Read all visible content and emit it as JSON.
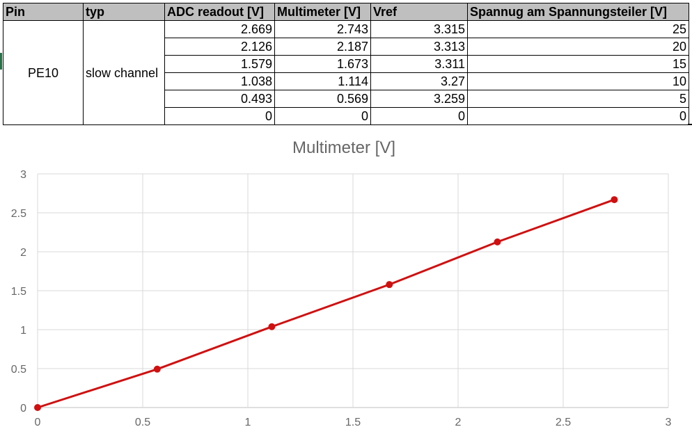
{
  "table": {
    "headers": [
      "Pin",
      "typ",
      "ADC readout [V]",
      "Multimeter [V]",
      "Vref",
      "Spannug am Spannungsteiler [V]"
    ],
    "pin": "PE10",
    "typ": "slow channel",
    "rows": [
      {
        "adc": "2.669",
        "multimeter": "2.743",
        "vref": "3.315",
        "spannung": "25"
      },
      {
        "adc": "2.126",
        "multimeter": "2.187",
        "vref": "3.313",
        "spannung": "20"
      },
      {
        "adc": "1.579",
        "multimeter": "1.673",
        "vref": "3.311",
        "spannung": "15"
      },
      {
        "adc": "1.038",
        "multimeter": "1.114",
        "vref": "3.27",
        "spannung": "10"
      },
      {
        "adc": "0.493",
        "multimeter": "0.569",
        "vref": "3.259",
        "spannung": "5"
      },
      {
        "adc": "0",
        "multimeter": "0",
        "vref": "0",
        "spannung": "0"
      }
    ]
  },
  "colors": {
    "series": "#d01010",
    "header_bg": "#bfbfbf",
    "text_muted": "#666666"
  },
  "chart_data": {
    "type": "scatter",
    "title": "Multimeter [V]",
    "xlabel": "",
    "ylabel": "",
    "xlim": [
      0,
      3
    ],
    "ylim": [
      0,
      3
    ],
    "xticks": [
      "0",
      "0.5",
      "1",
      "1.5",
      "2",
      "2.5",
      "3"
    ],
    "yticks": [
      "0",
      "0.5",
      "1",
      "1.5",
      "2",
      "2.5",
      "3"
    ],
    "grid": true,
    "series": [
      {
        "x": [
          0,
          0.569,
          1.114,
          1.673,
          2.187,
          2.743
        ],
        "y": [
          0,
          0.493,
          1.038,
          1.579,
          2.126,
          2.669
        ],
        "style": "line-with-markers"
      }
    ]
  }
}
